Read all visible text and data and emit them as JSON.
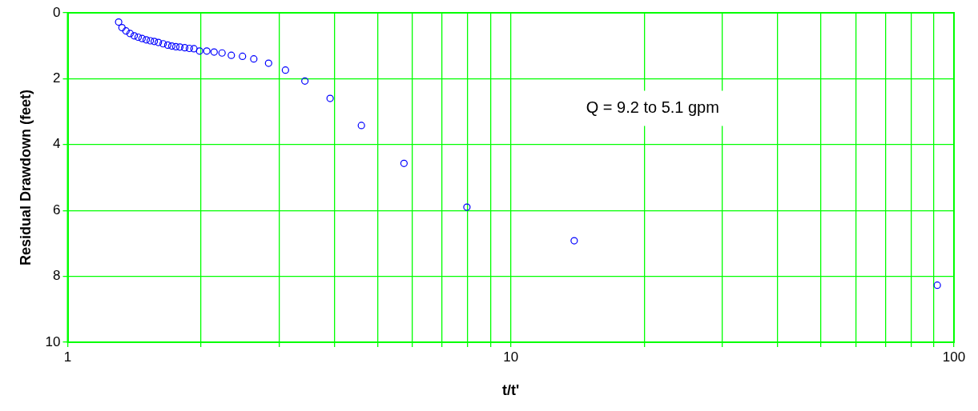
{
  "chart_data": {
    "type": "scatter",
    "xlabel": "t/t'",
    "ylabel": "Residual Drawdown (feet)",
    "annotations": [
      "Q = 9.2 to 5.1 gpm"
    ],
    "x": [
      1.303,
      1.326,
      1.354,
      1.383,
      1.413,
      1.442,
      1.472,
      1.504,
      1.536,
      1.568,
      1.602,
      1.642,
      1.682,
      1.718,
      1.754,
      1.791,
      1.837,
      1.882,
      1.927,
      1.984,
      2.06,
      2.14,
      2.23,
      2.34,
      2.48,
      2.63,
      2.84,
      3.1,
      3.43,
      3.91,
      4.6,
      5.74,
      7.96,
      13.9,
      91.7
    ],
    "series": [
      {
        "color": "#0000ff",
        "values": [
          0.28,
          0.45,
          0.55,
          0.63,
          0.7,
          0.74,
          0.78,
          0.82,
          0.85,
          0.87,
          0.9,
          0.94,
          0.98,
          1.01,
          1.03,
          1.04,
          1.06,
          1.08,
          1.09,
          1.16,
          1.16,
          1.19,
          1.22,
          1.29,
          1.32,
          1.4,
          1.53,
          1.74,
          2.07,
          2.6,
          3.42,
          4.57,
          5.9,
          6.92,
          8.27
        ]
      }
    ],
    "log": "x",
    "xlim": [
      1,
      100
    ],
    "xticks": [
      1,
      {
        "value": 2,
        "label": null
      },
      {
        "value": 3,
        "label": null
      },
      {
        "value": 4,
        "label": null
      },
      {
        "value": 5,
        "label": null
      },
      {
        "value": 6,
        "label": null
      },
      {
        "value": 7,
        "label": null
      },
      {
        "value": 8,
        "label": null
      },
      {
        "value": 9,
        "label": null
      },
      10,
      {
        "value": 20,
        "label": null
      },
      {
        "value": 30,
        "label": null
      },
      {
        "value": 40,
        "label": null
      },
      {
        "value": 50,
        "label": null
      },
      {
        "value": 60,
        "label": null
      },
      {
        "value": 70,
        "label": null
      },
      {
        "value": 80,
        "label": null
      },
      {
        "value": 90,
        "label": null
      },
      100
    ],
    "ylim": [
      10,
      0
    ],
    "yticks": [
      0,
      2,
      4,
      6,
      8,
      10
    ],
    "grid": true,
    "legend": false,
    "marker": "circle"
  }
}
